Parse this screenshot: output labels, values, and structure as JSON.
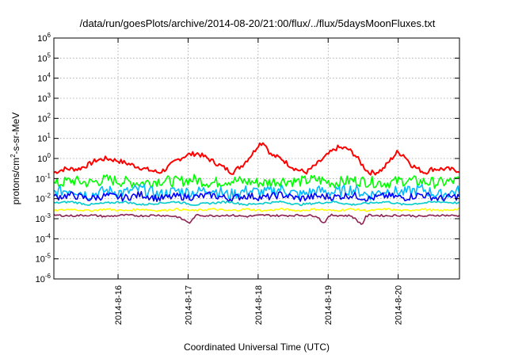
{
  "chart_data": {
    "type": "line",
    "title": "/data/run/goesPlots/archive/2014-08-20/21:00/flux/../flux/5daysMoonFluxes.txt",
    "xlabel": "Coordinated Universal Time (UTC)",
    "ylabel_parts": [
      "protons/cm",
      "2",
      "-s-sr-MeV"
    ],
    "yscale": "log",
    "ylim_exp": [
      -6,
      6
    ],
    "y_tick_base": "10",
    "y_ticks": [
      "-6",
      "-5",
      "-4",
      "-3",
      "-2",
      "-1",
      "0",
      "1",
      "2",
      "3",
      "4",
      "5",
      "6"
    ],
    "xlim": [
      "2014-08-15 02:00",
      "2014-08-20 21:00"
    ],
    "x_ticks": [
      "2014-8-16",
      "2014-8-17",
      "2014-8-18",
      "2014-8-19",
      "2014-8-20"
    ],
    "grid": true,
    "series": [
      {
        "color": "#ff0000",
        "x": [
          0.0,
          0.15,
          0.35,
          0.5,
          0.6,
          0.75,
          0.9,
          1.1,
          1.3,
          1.5,
          1.6,
          1.75,
          1.9,
          2.05,
          2.2,
          2.35,
          2.55,
          2.7,
          2.85,
          2.92,
          3.0,
          3.1,
          3.25,
          3.35,
          3.45,
          3.6,
          3.75,
          3.85,
          3.95,
          4.05,
          4.2,
          4.3,
          4.4,
          4.45,
          4.5,
          4.6,
          4.7,
          4.8,
          4.9,
          5.0,
          5.1,
          5.2,
          5.3,
          5.4,
          5.5,
          5.6,
          5.79
        ],
        "y": [
          0.2,
          0.3,
          0.3,
          0.5,
          0.8,
          1.0,
          0.8,
          0.5,
          0.3,
          0.2,
          0.3,
          0.8,
          1.5,
          1.8,
          1.0,
          0.5,
          0.2,
          0.5,
          2.0,
          5.0,
          6.5,
          1.5,
          1.0,
          0.5,
          0.3,
          0.2,
          0.5,
          1.0,
          2.0,
          3.5,
          3.0,
          1.5,
          0.5,
          0.3,
          0.2,
          0.2,
          0.3,
          0.8,
          2.0,
          1.5,
          0.5,
          0.3,
          0.2,
          0.3,
          0.3,
          0.3,
          0.25
        ]
      },
      {
        "color": "#00ff00",
        "x": [
          0.0,
          0.25,
          0.5,
          0.75,
          1.0,
          1.25,
          1.5,
          1.75,
          2.0,
          2.25,
          2.5,
          2.75,
          3.0,
          3.25,
          3.5,
          3.75,
          4.0,
          4.25,
          4.5,
          4.75,
          5.0,
          5.25,
          5.5,
          5.79
        ],
        "y": [
          0.05,
          0.08,
          0.06,
          0.09,
          0.07,
          0.06,
          0.08,
          0.07,
          0.09,
          0.06,
          0.08,
          0.07,
          0.06,
          0.08,
          0.07,
          0.09,
          0.06,
          0.08,
          0.07,
          0.06,
          0.08,
          0.07,
          0.06,
          0.08
        ]
      },
      {
        "color": "#00bbff",
        "x": [
          0.0,
          0.25,
          0.5,
          0.75,
          1.0,
          1.25,
          1.5,
          1.75,
          2.0,
          2.25,
          2.5,
          2.75,
          3.0,
          3.25,
          3.5,
          3.75,
          4.0,
          4.25,
          4.5,
          4.75,
          5.0,
          5.25,
          5.5,
          5.79
        ],
        "y": [
          0.02,
          0.03,
          0.015,
          0.025,
          0.02,
          0.03,
          0.015,
          0.025,
          0.02,
          0.03,
          0.015,
          0.025,
          0.02,
          0.03,
          0.015,
          0.025,
          0.02,
          0.03,
          0.015,
          0.025,
          0.02,
          0.03,
          0.015,
          0.025
        ]
      },
      {
        "color": "#0000ff",
        "x": [
          0.0,
          0.25,
          0.5,
          0.75,
          1.0,
          1.25,
          1.5,
          1.75,
          2.0,
          2.25,
          2.5,
          2.75,
          3.0,
          3.25,
          3.5,
          3.75,
          4.0,
          4.25,
          4.5,
          4.75,
          5.0,
          5.25,
          5.5,
          5.79
        ],
        "y": [
          0.012,
          0.015,
          0.01,
          0.014,
          0.011,
          0.016,
          0.01,
          0.013,
          0.012,
          0.015,
          0.01,
          0.014,
          0.011,
          0.016,
          0.01,
          0.013,
          0.012,
          0.015,
          0.01,
          0.014,
          0.011,
          0.016,
          0.01,
          0.013
        ]
      },
      {
        "color": "#00cccc",
        "x": [
          0.0,
          0.25,
          0.5,
          0.75,
          1.0,
          1.25,
          1.5,
          1.75,
          2.0,
          2.25,
          2.5,
          2.75,
          3.0,
          3.25,
          3.5,
          3.75,
          4.0,
          4.25,
          4.5,
          4.75,
          5.0,
          5.25,
          5.5,
          5.79
        ],
        "y": [
          0.006,
          0.007,
          0.005,
          0.006,
          0.007,
          0.005,
          0.006,
          0.007,
          0.005,
          0.006,
          0.007,
          0.005,
          0.006,
          0.007,
          0.005,
          0.006,
          0.007,
          0.005,
          0.006,
          0.007,
          0.005,
          0.006,
          0.007,
          0.006
        ]
      },
      {
        "color": "#ffff00",
        "x": [
          0.0,
          0.25,
          0.5,
          0.75,
          1.0,
          1.25,
          1.5,
          1.75,
          2.0,
          2.25,
          2.5,
          2.75,
          3.0,
          3.25,
          3.5,
          3.75,
          4.0,
          4.25,
          4.5,
          4.75,
          5.0,
          5.25,
          5.5,
          5.79
        ],
        "y": [
          0.0025,
          0.003,
          0.0025,
          0.003,
          0.0025,
          0.003,
          0.0025,
          0.003,
          0.0025,
          0.003,
          0.0025,
          0.003,
          0.0025,
          0.003,
          0.0025,
          0.003,
          0.0025,
          0.003,
          0.0025,
          0.003,
          0.0025,
          0.003,
          0.0025,
          0.003
        ]
      },
      {
        "color": "#8b2252",
        "x": [
          0.0,
          0.25,
          0.5,
          0.75,
          1.0,
          1.25,
          1.5,
          1.75,
          1.95,
          2.0,
          2.05,
          2.25,
          2.5,
          2.75,
          3.0,
          3.25,
          3.5,
          3.75,
          3.85,
          3.95,
          4.25,
          4.4,
          4.45,
          4.5,
          4.75,
          5.0,
          5.25,
          5.5,
          5.79
        ],
        "y": [
          0.0015,
          0.0014,
          0.0015,
          0.0013,
          0.0015,
          0.0014,
          0.0015,
          0.0013,
          0.0006,
          0.0012,
          0.0015,
          0.0014,
          0.0015,
          0.0013,
          0.0015,
          0.0014,
          0.0015,
          0.0014,
          0.0006,
          0.0015,
          0.0014,
          0.0005,
          0.0012,
          0.0015,
          0.0014,
          0.0015,
          0.0013,
          0.0015,
          0.0014
        ]
      }
    ]
  }
}
